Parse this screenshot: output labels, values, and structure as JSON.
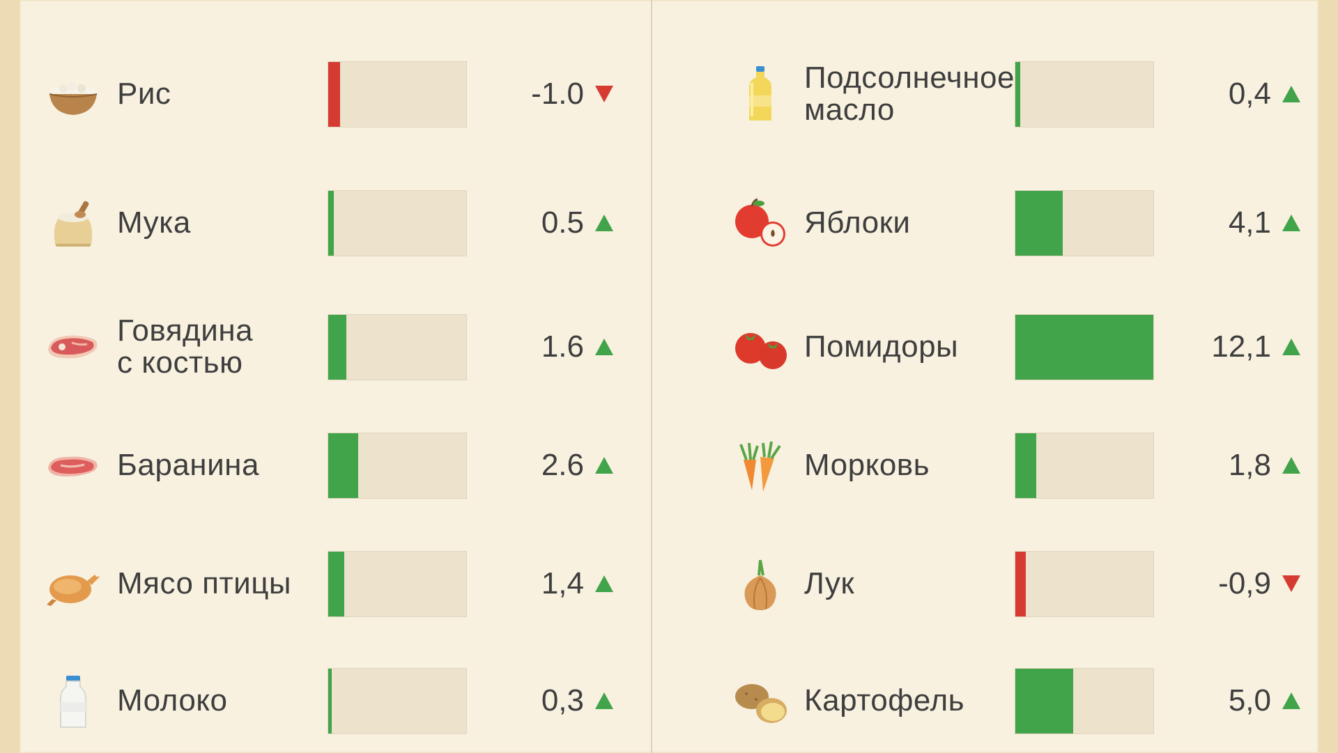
{
  "chart_data": {
    "type": "bar",
    "unit": "%",
    "colors": {
      "up": "#41a34a",
      "down": "#d63b32",
      "track": "#ede2cc"
    },
    "max_value": 12.1,
    "columns": [
      {
        "items": [
          {
            "label": "Рис",
            "value_text": "-1.0",
            "value": -1.0,
            "trend": "down",
            "icon": "rice-bowl-icon"
          },
          {
            "label": "Мука",
            "value_text": "0.5",
            "value": 0.5,
            "trend": "up",
            "icon": "flour-sack-icon"
          },
          {
            "label": "Говядина\nс костью",
            "value_text": "1.6",
            "value": 1.6,
            "trend": "up",
            "icon": "beef-steak-icon"
          },
          {
            "label": "Баранина",
            "value_text": "2.6",
            "value": 2.6,
            "trend": "up",
            "icon": "lamb-meat-icon"
          },
          {
            "label": "Мясо птицы",
            "value_text": "1,4",
            "value": 1.4,
            "trend": "up",
            "icon": "roast-chicken-icon"
          },
          {
            "label": "Молоко",
            "value_text": "0,3",
            "value": 0.3,
            "trend": "up",
            "icon": "milk-bottle-icon"
          }
        ]
      },
      {
        "items": [
          {
            "label": "Подсолнечное\nмасло",
            "value_text": "0,4",
            "value": 0.4,
            "trend": "up",
            "icon": "oil-bottle-icon"
          },
          {
            "label": "Яблоки",
            "value_text": "4,1",
            "value": 4.1,
            "trend": "up",
            "icon": "apple-icon"
          },
          {
            "label": "Помидоры",
            "value_text": "12,1",
            "value": 12.1,
            "trend": "up",
            "icon": "tomato-icon"
          },
          {
            "label": "Морковь",
            "value_text": "1,8",
            "value": 1.8,
            "trend": "up",
            "icon": "carrot-icon"
          },
          {
            "label": "Лук",
            "value_text": "-0,9",
            "value": -0.9,
            "trend": "down",
            "icon": "onion-icon"
          },
          {
            "label": "Картофель",
            "value_text": "5,0",
            "value": 5.0,
            "trend": "up",
            "icon": "potato-icon"
          }
        ]
      }
    ]
  }
}
